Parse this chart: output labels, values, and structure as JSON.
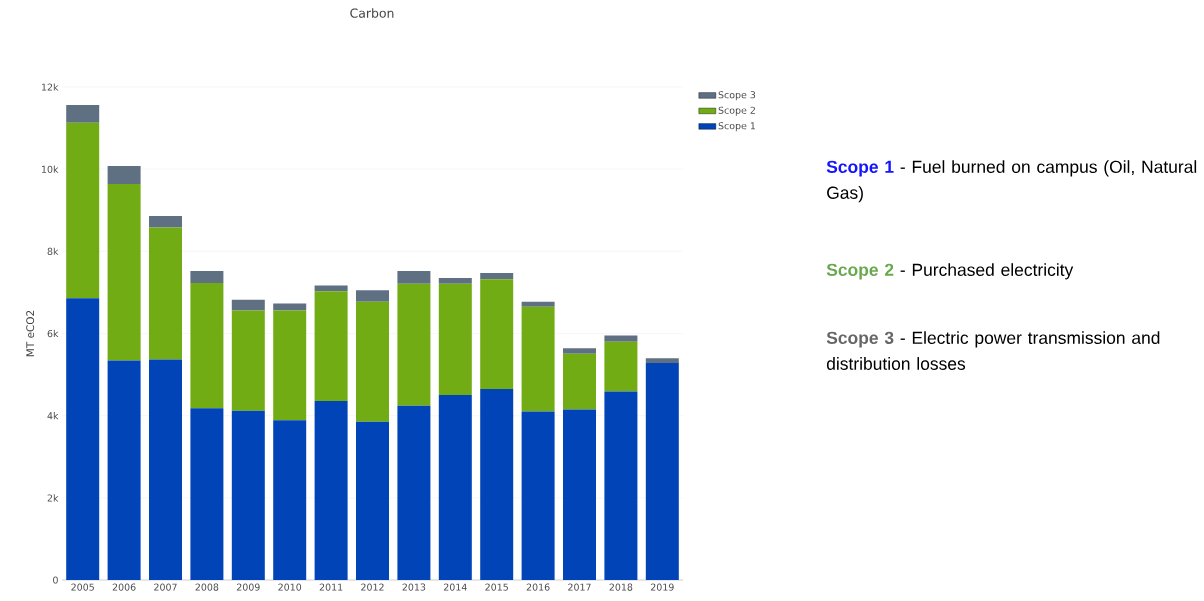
{
  "chart_data": {
    "type": "bar",
    "title": "Carbon",
    "ylabel": "MT eCO2",
    "stacked": true,
    "legend": "top right",
    "grid": "y",
    "categories": [
      "2005",
      "2006",
      "2007",
      "2008",
      "2009",
      "2010",
      "2011",
      "2012",
      "2013",
      "2014",
      "2015",
      "2016",
      "2017",
      "2018",
      "2019"
    ],
    "series": [
      {
        "name": "Scope 1",
        "color": "#0044b8",
        "values": [
          6860,
          5340,
          5370,
          4180,
          4120,
          3890,
          4360,
          3850,
          4240,
          4500,
          4650,
          4100,
          4150,
          4590,
          5280
        ]
      },
      {
        "name": "Scope 2",
        "color": "#72ac14",
        "values": [
          4270,
          4300,
          3210,
          3050,
          2440,
          2670,
          2670,
          2920,
          2970,
          2710,
          2670,
          2550,
          1360,
          1210,
          0
        ]
      },
      {
        "name": "Scope 3",
        "color": "#5f7083",
        "values": [
          430,
          440,
          280,
          290,
          260,
          170,
          140,
          280,
          310,
          140,
          150,
          120,
          130,
          150,
          120
        ]
      }
    ],
    "ylim": [
      0,
      12000
    ],
    "yticks": [
      0,
      {
        "value": 2000,
        "label": "2k"
      },
      {
        "value": 4000,
        "label": "4k"
      },
      {
        "value": 6000,
        "label": "6k"
      },
      {
        "value": 8000,
        "label": "8k"
      },
      {
        "value": 10000,
        "label": "10k"
      },
      {
        "value": 12000,
        "label": "12k"
      }
    ],
    "annotations": [
      "Scope 1",
      "- Fuel burned on campus (Oil, Natural Gas)",
      "Scope 2",
      "- Purchased electricity",
      "Scope 3",
      "- Electric power transmission and distribution losses"
    ]
  }
}
